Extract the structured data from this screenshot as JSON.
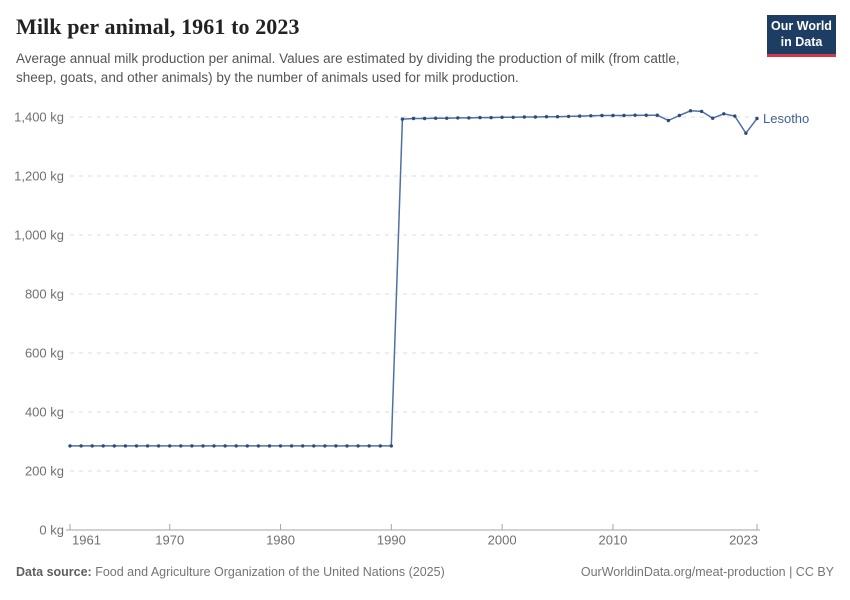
{
  "header": {
    "title": "Milk per animal, 1961 to 2023",
    "subtitle": "Average annual milk production per animal. Values are estimated by dividing the production of milk (from cattle, sheep, goats, and other animals) by the number of animals used for milk production."
  },
  "logo": {
    "line1": "Our World",
    "line2": "in Data"
  },
  "chart_data": {
    "type": "line",
    "title": "Milk per animal, 1961 to 2023",
    "entity_label": "Lesotho",
    "unit": "kg",
    "xlim": [
      1961,
      2023
    ],
    "ylim": [
      0,
      1400
    ],
    "grid": "horizontal-dashed",
    "legend_position": "end-of-line-label",
    "xticks": [
      1961,
      1970,
      1980,
      1990,
      2000,
      2010,
      2023
    ],
    "yticks": [
      0,
      200,
      400,
      600,
      800,
      1000,
      1200,
      1400
    ],
    "ytick_labels": [
      "0 kg",
      "200 kg",
      "400 kg",
      "600 kg",
      "800 kg",
      "1,000 kg",
      "1,200 kg",
      "1,400 kg"
    ],
    "x": [
      1961,
      1962,
      1963,
      1964,
      1965,
      1966,
      1967,
      1968,
      1969,
      1970,
      1971,
      1972,
      1973,
      1974,
      1975,
      1976,
      1977,
      1978,
      1979,
      1980,
      1981,
      1982,
      1983,
      1984,
      1985,
      1986,
      1987,
      1988,
      1989,
      1990,
      1991,
      1992,
      1993,
      1994,
      1995,
      1996,
      1997,
      1998,
      1999,
      2000,
      2001,
      2002,
      2003,
      2004,
      2005,
      2006,
      2007,
      2008,
      2009,
      2010,
      2011,
      2012,
      2013,
      2014,
      2015,
      2016,
      2017,
      2018,
      2019,
      2020,
      2021,
      2022,
      2023
    ],
    "series": [
      {
        "name": "Lesotho",
        "values": [
          285,
          285,
          285,
          285,
          285,
          285,
          285,
          285,
          285,
          285,
          285,
          285,
          285,
          285,
          285,
          285,
          285,
          285,
          285,
          285,
          285,
          285,
          285,
          285,
          285,
          285,
          285,
          285,
          285,
          285,
          1393,
          1395,
          1395,
          1396,
          1396,
          1397,
          1397,
          1398,
          1398,
          1399,
          1399,
          1400,
          1400,
          1401,
          1401,
          1402,
          1403,
          1404,
          1405,
          1405,
          1405,
          1406,
          1406,
          1406,
          1388,
          1405,
          1421,
          1419,
          1396,
          1411,
          1403,
          1345,
          1395
        ]
      }
    ]
  },
  "footer": {
    "source_label": "Data source:",
    "source_text": "Food and Agriculture Organization of the United Nations (2025)",
    "attribution": "OurWorldinData.org/meat-production | CC BY"
  },
  "colors": {
    "line": "#4f70a5",
    "marker": "#2d4a7d",
    "entity_label": "#3f619e",
    "grid": "#dcdcdc",
    "axis": "#a6a6a6",
    "tick_label": "#707070",
    "logo_bg": "#1d3d63",
    "logo_accent": "#d1384a"
  }
}
